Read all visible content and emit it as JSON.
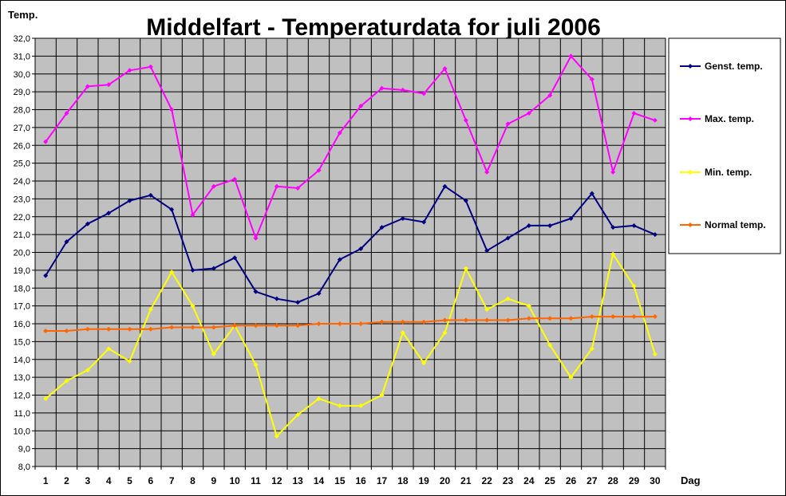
{
  "chart_data": {
    "type": "line",
    "title": "Middelfart - Temperaturdata for juli 2006",
    "ylabel": "Temp.",
    "xlabel": "Dag",
    "ylim": [
      8,
      32
    ],
    "ytick_step": 1,
    "ytick_labels": [
      "8,0",
      "9,0",
      "10,0",
      "11,0",
      "12,0",
      "13,0",
      "14,0",
      "15,0",
      "16,0",
      "17,0",
      "18,0",
      "19,0",
      "20,0",
      "21,0",
      "22,0",
      "23,0",
      "24,0",
      "25,0",
      "26,0",
      "27,0",
      "28,0",
      "29,0",
      "30,0",
      "31,0",
      "32,0"
    ],
    "categories": [
      "1",
      "2",
      "3",
      "4",
      "5",
      "6",
      "7",
      "8",
      "9",
      "10",
      "11",
      "12",
      "13",
      "14",
      "15",
      "16",
      "17",
      "18",
      "19",
      "20",
      "21",
      "22",
      "23",
      "24",
      "25",
      "26",
      "27",
      "28",
      "29",
      "30"
    ],
    "grid": true,
    "plot_background": "#c0c0c0",
    "legend_position": "right",
    "series": [
      {
        "name": "Genst. temp.",
        "color": "#000080",
        "values": [
          18.7,
          20.6,
          21.6,
          22.2,
          22.9,
          23.2,
          22.4,
          19.0,
          19.1,
          19.7,
          17.8,
          17.4,
          17.2,
          17.7,
          19.6,
          20.2,
          21.4,
          21.9,
          21.7,
          23.7,
          22.9,
          20.1,
          20.8,
          21.5,
          21.5,
          21.9,
          23.3,
          21.4,
          21.5,
          21.0
        ]
      },
      {
        "name": "Max. temp.",
        "color": "#ff00ff",
        "values": [
          26.2,
          27.8,
          29.3,
          29.4,
          30.2,
          30.4,
          28.0,
          22.1,
          23.7,
          24.1,
          20.8,
          23.7,
          23.6,
          24.6,
          26.7,
          28.2,
          29.2,
          29.1,
          28.9,
          30.3,
          27.4,
          24.5,
          27.2,
          27.8,
          28.8,
          31.0,
          29.7,
          24.5,
          27.8,
          27.4
        ]
      },
      {
        "name": "Min. temp.",
        "color": "#ffff00",
        "values": [
          11.8,
          12.8,
          13.4,
          14.6,
          13.9,
          16.8,
          18.9,
          17.0,
          14.3,
          15.9,
          13.7,
          9.7,
          10.9,
          11.8,
          11.4,
          11.4,
          12.0,
          15.5,
          13.8,
          15.5,
          19.1,
          16.8,
          17.4,
          17.0,
          14.8,
          13.0,
          14.6,
          19.9,
          18.1,
          14.3
        ]
      },
      {
        "name": "Normal temp.",
        "color": "#ff6600",
        "values": [
          15.6,
          15.6,
          15.7,
          15.7,
          15.7,
          15.7,
          15.8,
          15.8,
          15.8,
          15.9,
          15.9,
          15.9,
          15.9,
          16.0,
          16.0,
          16.0,
          16.1,
          16.1,
          16.1,
          16.2,
          16.2,
          16.2,
          16.2,
          16.3,
          16.3,
          16.3,
          16.4,
          16.4,
          16.4,
          16.4
        ]
      }
    ]
  }
}
